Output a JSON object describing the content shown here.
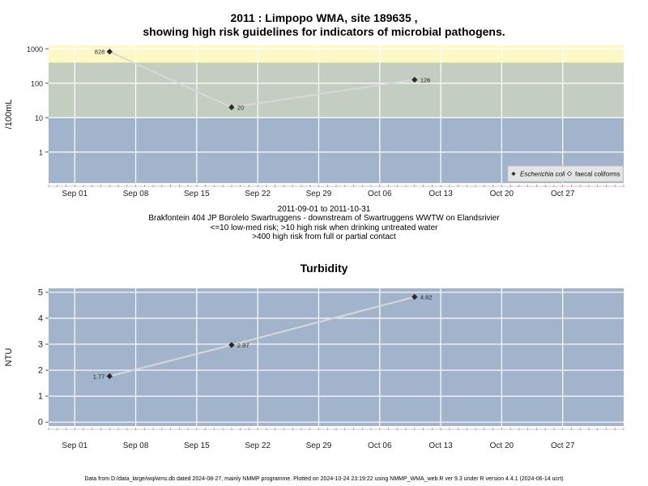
{
  "title": {
    "line1": "2011 : Limpopo WMA, site 189635 ,",
    "line2": "showing high risk guidelines for indicators of microbial pathogens."
  },
  "captions": [
    "2011-09-01 to 2011-10-31",
    "Brakfontein 404 JP Borolelo Swartruggens - downstream of Swartruggens WWTW on Elandsrivier",
    "<=10 low-med risk; >10 high risk when drinking untreated water",
    ">400 high risk from full or partial contact"
  ],
  "footer": "Data from D:/data_large/wq/wms.db dated 2024-08-27, mainly NMMP programme. Plotted on 2024-10-24 23:19:22 using NMMP_WMA_web.R ver 9.3 under R version 4.4.1 (2024-06-14 ucrt)",
  "colors": {
    "band_low": "#a2b4cc",
    "band_mid": "#c3cdc0",
    "band_high": "#fdf8c4",
    "line": "#d8d8d8",
    "point": "#2b2b2b",
    "grid": "#ffffff"
  },
  "chart_data": [
    {
      "type": "line",
      "title": "",
      "ylabel": "/100mL",
      "xlabel": "",
      "y_scale": "log",
      "ylim_log10": [
        -0.9,
        3.1
      ],
      "yticks": [
        1,
        10,
        100,
        1000
      ],
      "ytick_labels": [
        "1",
        "10",
        "100",
        "1000"
      ],
      "xlim": [
        "2011-08-29",
        "2011-11-03"
      ],
      "xticks": [
        "2011-09-01",
        "2011-09-08",
        "2011-09-15",
        "2011-09-22",
        "2011-09-29",
        "2011-10-06",
        "2011-10-13",
        "2011-10-20",
        "2011-10-27"
      ],
      "xtick_labels": [
        "Sep 01",
        "Sep 08",
        "Sep 15",
        "Sep 22",
        "Sep 29",
        "Oct 06",
        "Oct 13",
        "Oct 20",
        "Oct 27"
      ],
      "grid": true,
      "risk_bands": [
        {
          "from": 0,
          "to": 10,
          "color": "#a2b4cc"
        },
        {
          "from": 10,
          "to": 400,
          "color": "#c3cdc0"
        },
        {
          "from": 400,
          "to": 1260,
          "color": "#fdf8c4"
        }
      ],
      "series": [
        {
          "name": "Escherichia coli",
          "x": [
            "2011-09-05",
            "2011-09-19",
            "2011-10-10"
          ],
          "values": [
            828,
            20,
            126
          ],
          "labels": [
            "828",
            "20",
            "126"
          ]
        }
      ],
      "legend": {
        "position": "bottom-right",
        "entries": [
          "Escherichia coli",
          "faecal coliforms"
        ]
      }
    },
    {
      "type": "line",
      "title": "Turbidity",
      "ylabel": "NTU",
      "xlabel": "",
      "ylim": [
        -0.15,
        5.15
      ],
      "yticks": [
        0,
        1,
        2,
        3,
        4,
        5
      ],
      "ytick_labels": [
        "0",
        "1",
        "2",
        "3",
        "4",
        "5"
      ],
      "xlim": [
        "2011-08-29",
        "2011-11-03"
      ],
      "xticks": [
        "2011-09-01",
        "2011-09-08",
        "2011-09-15",
        "2011-09-22",
        "2011-09-29",
        "2011-10-06",
        "2011-10-13",
        "2011-10-20",
        "2011-10-27"
      ],
      "xtick_labels": [
        "Sep 01",
        "Sep 08",
        "Sep 15",
        "Sep 22",
        "Sep 29",
        "Oct 06",
        "Oct 13",
        "Oct 20",
        "Oct 27"
      ],
      "grid": true,
      "series": [
        {
          "name": "",
          "x": [
            "2011-09-05",
            "2011-09-19",
            "2011-10-10"
          ],
          "values": [
            1.77,
            2.97,
            4.82
          ],
          "labels": [
            "1.77",
            "2.97",
            "4.82"
          ]
        }
      ]
    }
  ]
}
